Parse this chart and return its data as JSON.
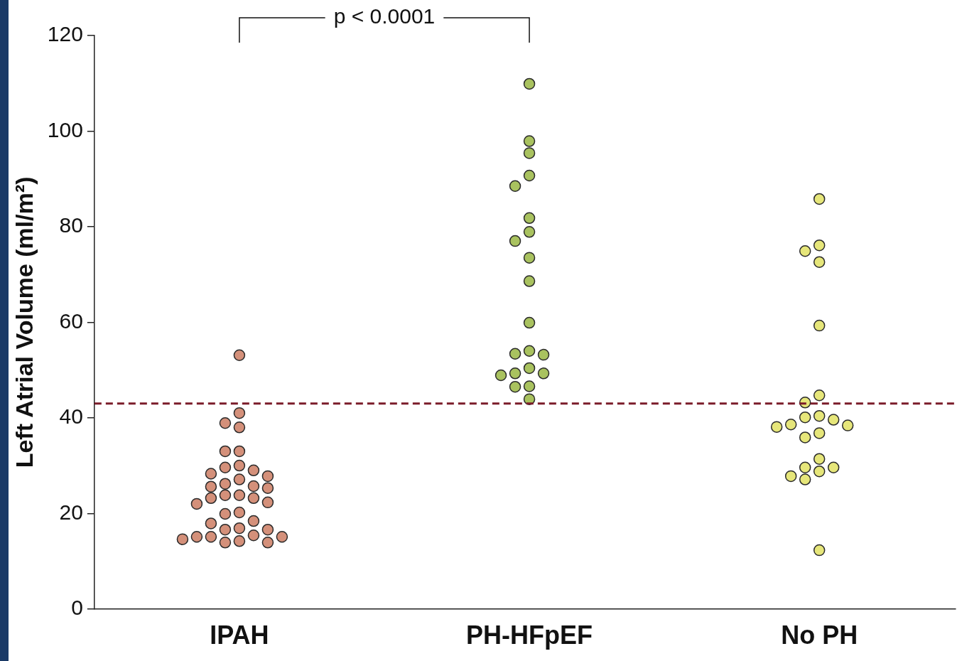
{
  "chart_data": {
    "type": "scatter",
    "categories": [
      "IPAH",
      "PH-HFpEF",
      "No PH"
    ],
    "ylabel": "Left Atrial Volume (ml/m²)",
    "ylim": [
      0,
      120
    ],
    "yticks": [
      0,
      20,
      40,
      60,
      80,
      100,
      120
    ],
    "grid": false,
    "legend": false,
    "marker": "circle",
    "series": [
      {
        "color": "#d4907a",
        "x": [
          "IPAH",
          "IPAH",
          "IPAH",
          "IPAH",
          "IPAH",
          "IPAH",
          "IPAH",
          "IPAH",
          "IPAH",
          "IPAH",
          "IPAH",
          "IPAH",
          "IPAH",
          "IPAH",
          "IPAH",
          "IPAH",
          "IPAH",
          "IPAH",
          "IPAH",
          "IPAH",
          "IPAH",
          "IPAH",
          "IPAH",
          "IPAH",
          "IPAH",
          "IPAH",
          "IPAH",
          "IPAH",
          "IPAH",
          "IPAH",
          "IPAH",
          "IPAH",
          "IPAH",
          "IPAH",
          "IPAH",
          "IPAH",
          "IPAH"
        ],
        "values": [
          53.1,
          41.0,
          38.9,
          38.0,
          33.0,
          33.0,
          30.0,
          29.6,
          29.0,
          28.3,
          27.8,
          27.1,
          26.2,
          25.7,
          25.6,
          25.3,
          23.8,
          23.8,
          23.2,
          23.2,
          22.3,
          22.0,
          20.2,
          19.9,
          18.4,
          17.9,
          16.9,
          16.6,
          16.6,
          15.4,
          15.1,
          15.1,
          15.1,
          14.6,
          14.2,
          13.9,
          13.9
        ]
      },
      {
        "color": "#a9c25f",
        "x": [
          "PH-HFpEF",
          "PH-HFpEF",
          "PH-HFpEF",
          "PH-HFpEF",
          "PH-HFpEF",
          "PH-HFpEF",
          "PH-HFpEF",
          "PH-HFpEF",
          "PH-HFpEF",
          "PH-HFpEF",
          "PH-HFpEF",
          "PH-HFpEF",
          "PH-HFpEF",
          "PH-HFpEF",
          "PH-HFpEF",
          "PH-HFpEF",
          "PH-HFpEF",
          "PH-HFpEF",
          "PH-HFpEF",
          "PH-HFpEF",
          "PH-HFpEF"
        ],
        "values": [
          109.9,
          97.9,
          95.4,
          90.7,
          88.5,
          81.8,
          78.9,
          77.0,
          73.5,
          68.6,
          59.9,
          54.0,
          53.4,
          53.2,
          50.4,
          49.3,
          49.3,
          48.9,
          46.6,
          46.5,
          43.9
        ]
      },
      {
        "color": "#e6e67a",
        "x": [
          "No PH",
          "No PH",
          "No PH",
          "No PH",
          "No PH",
          "No PH",
          "No PH",
          "No PH",
          "No PH",
          "No PH",
          "No PH",
          "No PH",
          "No PH",
          "No PH",
          "No PH",
          "No PH",
          "No PH",
          "No PH",
          "No PH",
          "No PH",
          "No PH",
          "No PH"
        ],
        "values": [
          85.8,
          76.1,
          74.9,
          72.6,
          59.3,
          44.7,
          43.2,
          40.4,
          40.1,
          39.6,
          38.6,
          38.4,
          38.1,
          36.8,
          35.9,
          31.4,
          29.6,
          29.6,
          28.8,
          27.8,
          27.1,
          12.3
        ]
      }
    ],
    "ref_lines": [
      {
        "axis": "y",
        "value": 43,
        "label": null,
        "color": "#7b1c2a",
        "line_style": "dashed"
      }
    ],
    "annotations": [
      "p < 0.0001"
    ]
  }
}
